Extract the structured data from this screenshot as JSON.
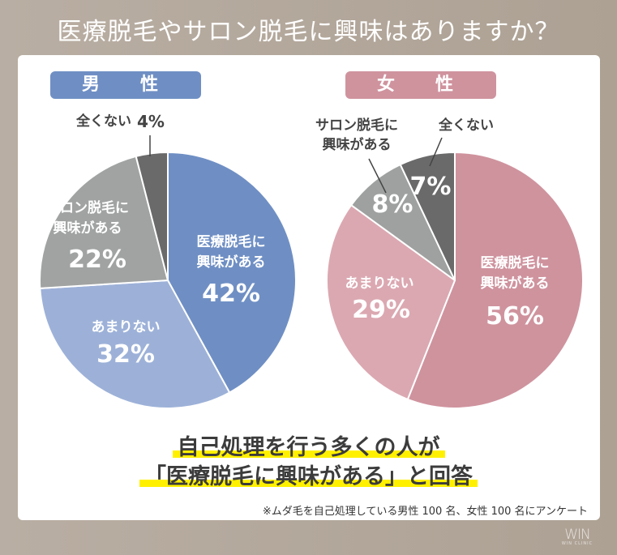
{
  "title": "医療脱毛やサロン脱毛に興味はありますか？",
  "chart_data": [
    {
      "type": "pie",
      "title": "男　性",
      "header_color": "#6f8fc4",
      "labels": [
        "医療脱毛に興味がある",
        "あまりない",
        "サロン脱毛に興味がある",
        "全くない"
      ],
      "values": [
        42,
        32,
        22,
        4
      ],
      "colors": [
        "#6f8fc4",
        "#9db1d8",
        "#a1a3a3",
        "#6a6a6a"
      ],
      "start": "12 o'clock",
      "direction": "clockwise"
    },
    {
      "type": "pie",
      "title": "女　性",
      "header_color": "#cf939e",
      "labels": [
        "医療脱毛に興味がある",
        "あまりない",
        "サロン脱毛に興味がある",
        "全くない"
      ],
      "values": [
        56,
        29,
        8,
        7
      ],
      "colors": [
        "#cf939e",
        "#dba8b1",
        "#9fa1a1",
        "#6a6a6a"
      ],
      "start": "12 o'clock",
      "direction": "clockwise"
    }
  ],
  "conclusion": {
    "line1": "自己処理を行う多くの人が",
    "line2": "「医療脱毛に興味がある」と回答"
  },
  "footnote": "※ムダ毛を自己処理している男性 100 名、女性 100 名にアンケート",
  "logo": {
    "mark": "WIN",
    "sub": "WIN CLINIC"
  }
}
